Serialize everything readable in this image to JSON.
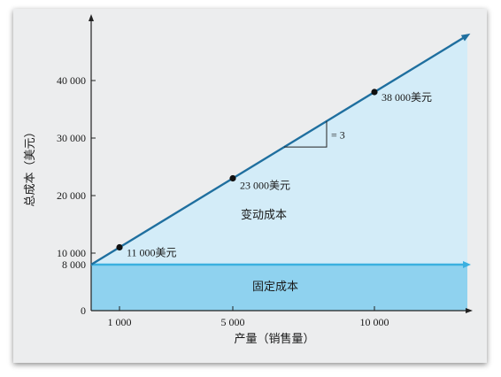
{
  "chart_data": {
    "type": "line",
    "xlabel": "产量（销售量）",
    "ylabel": "总成本（美元）",
    "x_ticks": [
      1000,
      5000,
      10000
    ],
    "x_tick_labels": [
      "1 000",
      "5 000",
      "10 000"
    ],
    "y_ticks": [
      0,
      8000,
      10000,
      20000,
      30000,
      40000
    ],
    "y_tick_labels": [
      "0",
      "8 000",
      "10 000",
      "20 000",
      "30 000",
      "40 000"
    ],
    "series": [
      {
        "x": [
          0,
          13000
        ],
        "y": [
          8000,
          47000
        ]
      }
    ],
    "fixed_cost": 8000,
    "slope": 3,
    "points": [
      {
        "x": 1000,
        "y": 11000,
        "label": "11 000美元"
      },
      {
        "x": 5000,
        "y": 23000,
        "label": "23 000美元"
      },
      {
        "x": 10000,
        "y": 38000,
        "label": "38 000美元"
      }
    ],
    "slope_label": "= 3",
    "regions": {
      "variable_cost": "变动成本",
      "fixed_cost": "固定成本"
    },
    "colors": {
      "line": "#1f6f9f",
      "variable_fill": "#d3ecf8",
      "fixed_fill": "#8fd2ef",
      "fixed_line": "#3bb0e0",
      "background": "#ecedee"
    }
  }
}
